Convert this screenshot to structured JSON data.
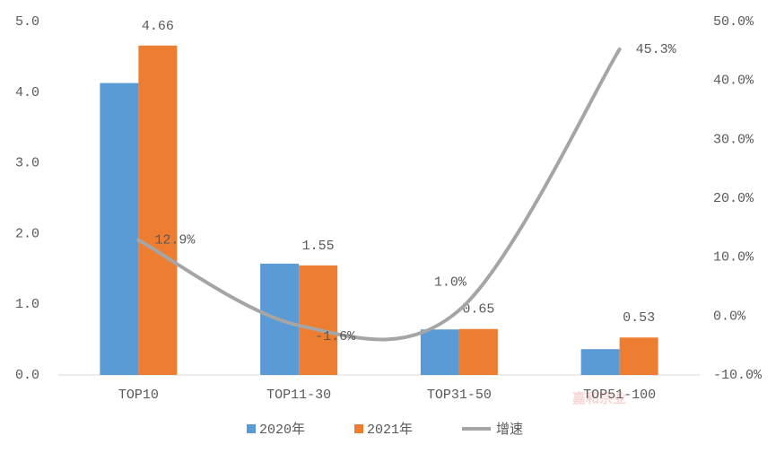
{
  "chart_data": {
    "type": "bar",
    "categories": [
      "TOP10",
      "TOP11-30",
      "TOP31-50",
      "TOP51-100"
    ],
    "series": [
      {
        "name": "2020年",
        "color": "#5b9bd5",
        "values": [
          4.13,
          1.575,
          0.644,
          0.365
        ]
      },
      {
        "name": "2021年",
        "color": "#ed7d31",
        "values": [
          4.66,
          1.55,
          0.65,
          0.53
        ],
        "data_labels": true
      },
      {
        "name": "增速",
        "color": "#a5a5a5",
        "type": "line",
        "axis": "y2",
        "values": [
          12.9,
          -1.6,
          1.0,
          45.3
        ],
        "value_labels": [
          "12.9%",
          "-1.6%",
          "1.0%",
          "45.3%"
        ]
      }
    ],
    "ylim": [
      0,
      5
    ],
    "yticks": [
      {
        "value": 0,
        "label": "0.0"
      },
      {
        "value": 1,
        "label": "1.0"
      },
      {
        "value": 2,
        "label": "2.0"
      },
      {
        "value": 3,
        "label": "3.0"
      },
      {
        "value": 4,
        "label": "4.0"
      },
      {
        "value": 5,
        "label": "5.0"
      }
    ],
    "y2lim": [
      -10,
      50
    ],
    "y2ticks": [
      {
        "value": -10,
        "label": "-10.0%"
      },
      {
        "value": 0,
        "label": "0.0%"
      },
      {
        "value": 10,
        "label": "10.0%"
      },
      {
        "value": 20,
        "label": "20.0%"
      },
      {
        "value": 30,
        "label": "30.0%"
      },
      {
        "value": 40,
        "label": "40.0%"
      },
      {
        "value": 50,
        "label": "50.0%"
      }
    ],
    "grid": false,
    "legend": "bottom",
    "watermark": "嘉和宗业"
  }
}
